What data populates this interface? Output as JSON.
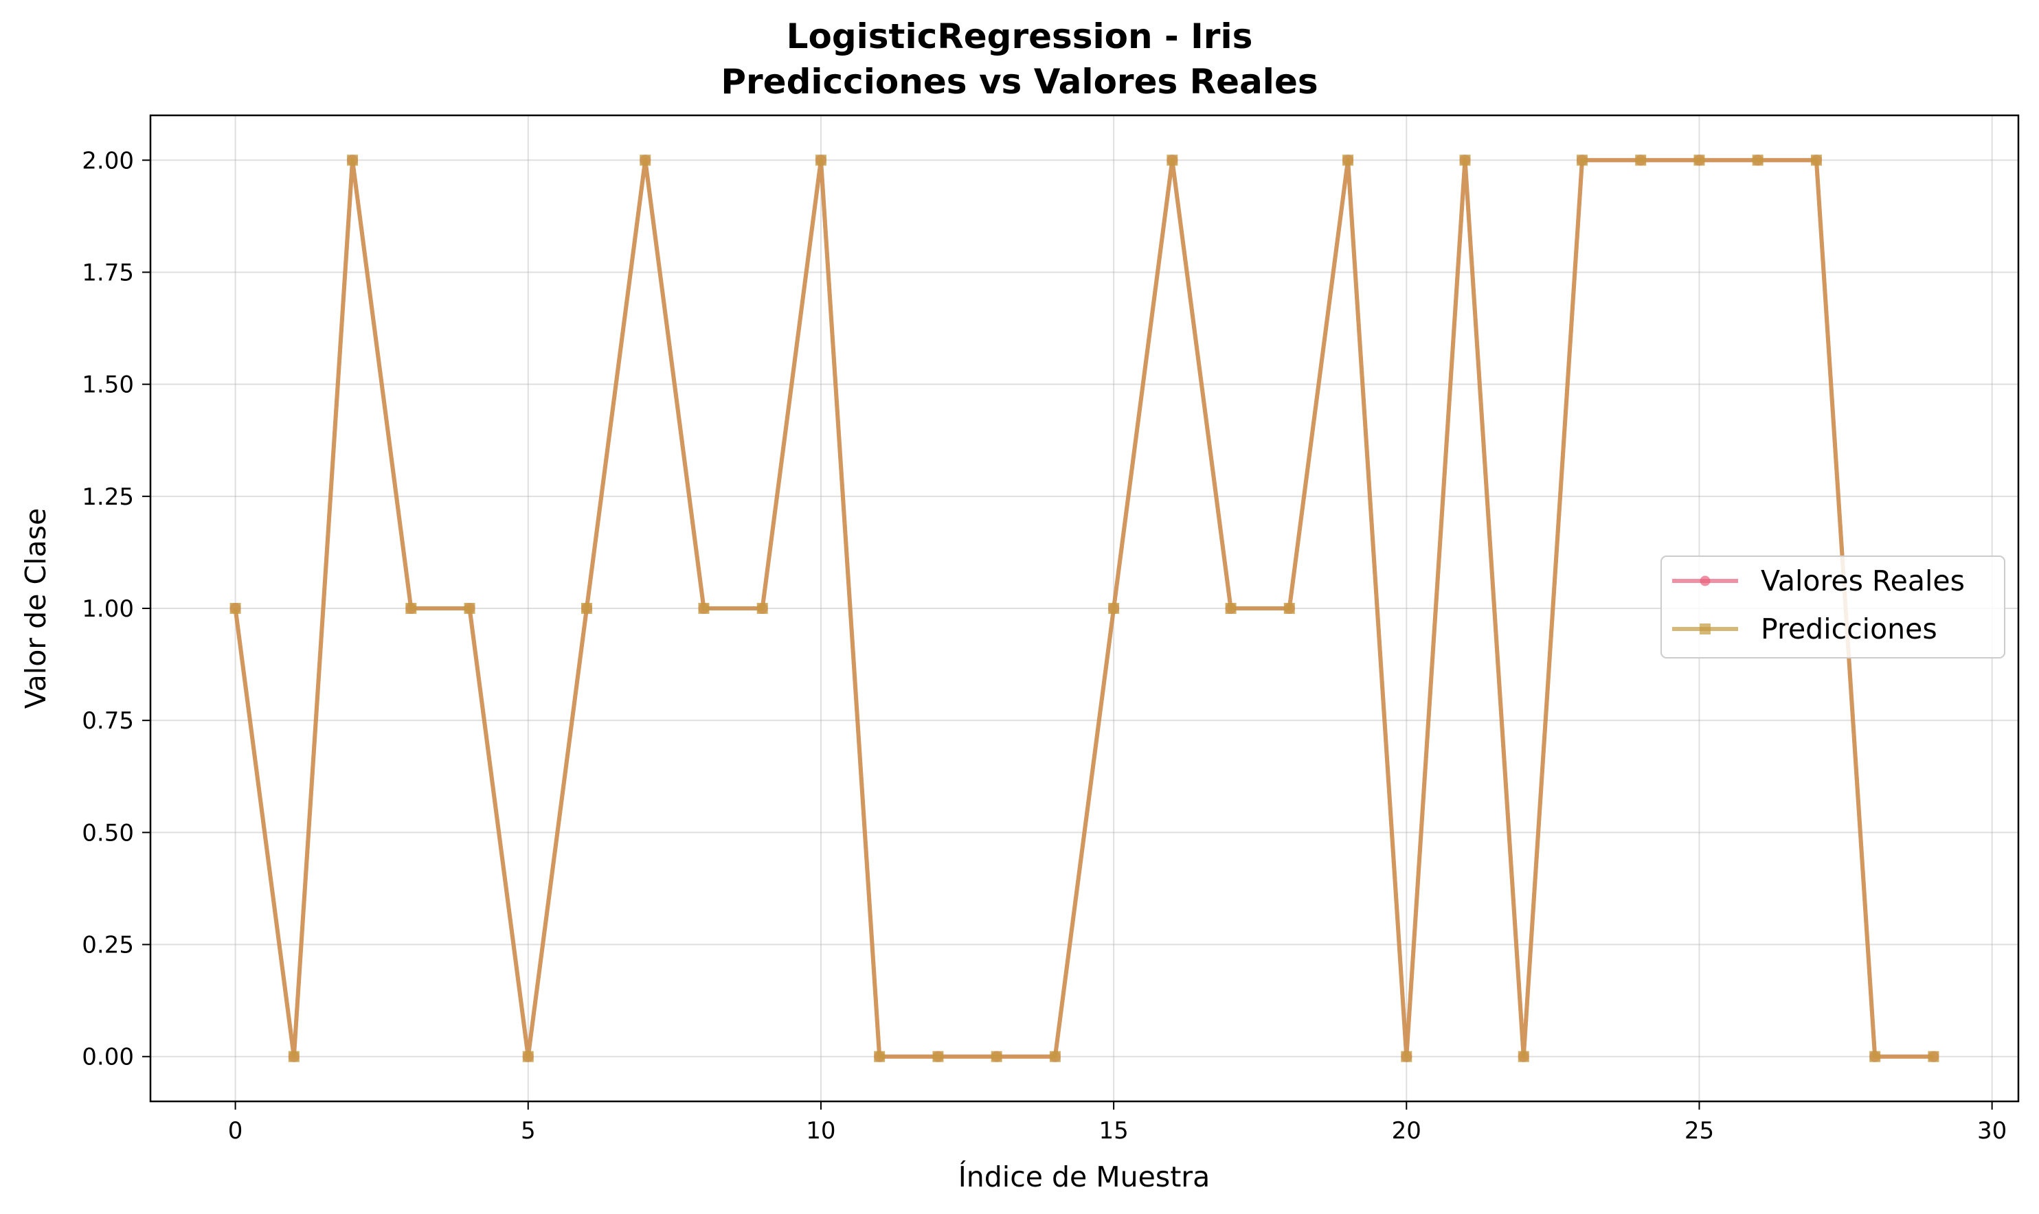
{
  "chart_data": {
    "type": "line",
    "title": "LogisticRegression - Iris",
    "subtitle": "Predicciones vs Valores Reales",
    "xlabel": "Índice de Muestra",
    "ylabel": "Valor de Clase",
    "xlim": [
      -1.45,
      30.45
    ],
    "ylim": [
      -0.1,
      2.1
    ],
    "xticks": [
      0,
      5,
      10,
      15,
      20,
      25,
      30
    ],
    "xtick_labels": [
      "0",
      "5",
      "10",
      "15",
      "20",
      "25",
      "30"
    ],
    "yticks": [
      0.0,
      0.25,
      0.5,
      0.75,
      1.0,
      1.25,
      1.5,
      1.75,
      2.0
    ],
    "ytick_labels": [
      "0.00",
      "0.25",
      "0.50",
      "0.75",
      "1.00",
      "1.25",
      "1.50",
      "1.75",
      "2.00"
    ],
    "grid": true,
    "legend_position": "center-right",
    "x": [
      0,
      1,
      2,
      3,
      4,
      5,
      6,
      7,
      8,
      9,
      10,
      11,
      12,
      13,
      14,
      15,
      16,
      17,
      18,
      19,
      20,
      21,
      22,
      23,
      24,
      25,
      26,
      27,
      28,
      29
    ],
    "series": [
      {
        "name": "Valores Reales",
        "marker": "circle",
        "color": "#e8637d",
        "values": [
          1,
          0,
          2,
          1,
          1,
          0,
          1,
          2,
          1,
          1,
          2,
          0,
          0,
          0,
          0,
          1,
          2,
          1,
          1,
          2,
          0,
          2,
          0,
          2,
          2,
          2,
          2,
          2,
          0,
          0
        ]
      },
      {
        "name": "Predicciones",
        "marker": "square",
        "color": "#c49a3f",
        "values": [
          1,
          0,
          2,
          1,
          1,
          0,
          1,
          2,
          1,
          1,
          2,
          0,
          0,
          0,
          0,
          1,
          2,
          1,
          1,
          2,
          0,
          2,
          0,
          2,
          2,
          2,
          2,
          2,
          0,
          0
        ]
      }
    ]
  }
}
